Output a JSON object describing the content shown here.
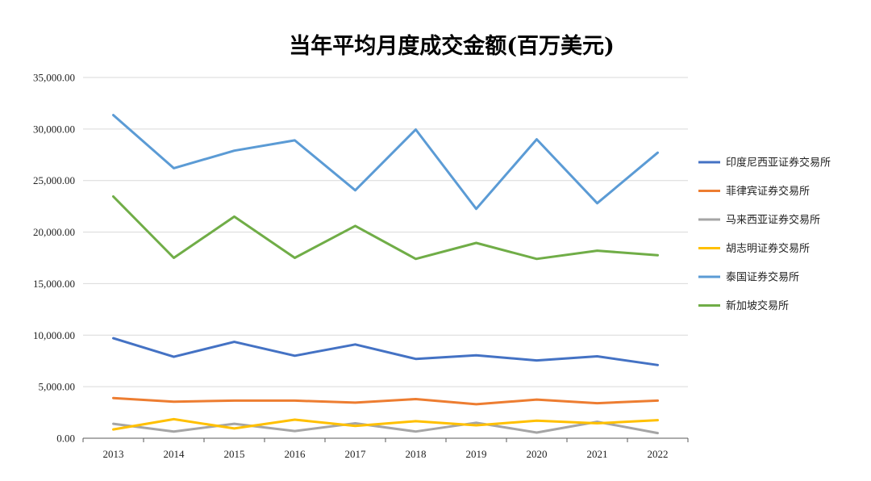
{
  "chart_data": {
    "type": "line",
    "title": "当年平均月度成交金额(百万美元)",
    "categories": [
      "2013",
      "2014",
      "2015",
      "2016",
      "2017",
      "2018",
      "2019",
      "2020",
      "2021",
      "2022"
    ],
    "ylim": [
      0,
      35000
    ],
    "y_ticks": [
      "0.00",
      "5,000.00",
      "10,000.00",
      "15,000.00",
      "20,000.00",
      "25,000.00",
      "30,000.00",
      "35,000.00"
    ],
    "grid": "horizontal",
    "legend_position": "right",
    "series": [
      {
        "name": "印度尼西亚证券交易所",
        "color": "#4472C4",
        "values": [
          9700,
          7900,
          9350,
          8000,
          9100,
          7700,
          8050,
          7550,
          7950,
          7100
        ]
      },
      {
        "name": "菲律宾证券交易所",
        "color": "#ED7D31",
        "values": [
          3900,
          3550,
          3650,
          3650,
          3450,
          3800,
          3300,
          3750,
          3400,
          3650
        ]
      },
      {
        "name": "马来西亚证券交易所",
        "color": "#A5A5A5",
        "values": [
          1400,
          650,
          1400,
          700,
          1450,
          650,
          1500,
          550,
          1600,
          500
        ]
      },
      {
        "name": "胡志明证券交易所",
        "color": "#FFC000",
        "values": [
          850,
          1850,
          950,
          1800,
          1200,
          1650,
          1250,
          1700,
          1450,
          1750
        ]
      },
      {
        "name": "泰国证券交易所",
        "color": "#5B9BD5",
        "values": [
          31350,
          26200,
          27900,
          28900,
          24050,
          29950,
          22250,
          29000,
          22800,
          27700
        ]
      },
      {
        "name": "新加坡交易所",
        "color": "#70AD47",
        "values": [
          23450,
          17500,
          21500,
          17500,
          20600,
          17400,
          18950,
          17400,
          18200,
          17750
        ]
      }
    ]
  }
}
